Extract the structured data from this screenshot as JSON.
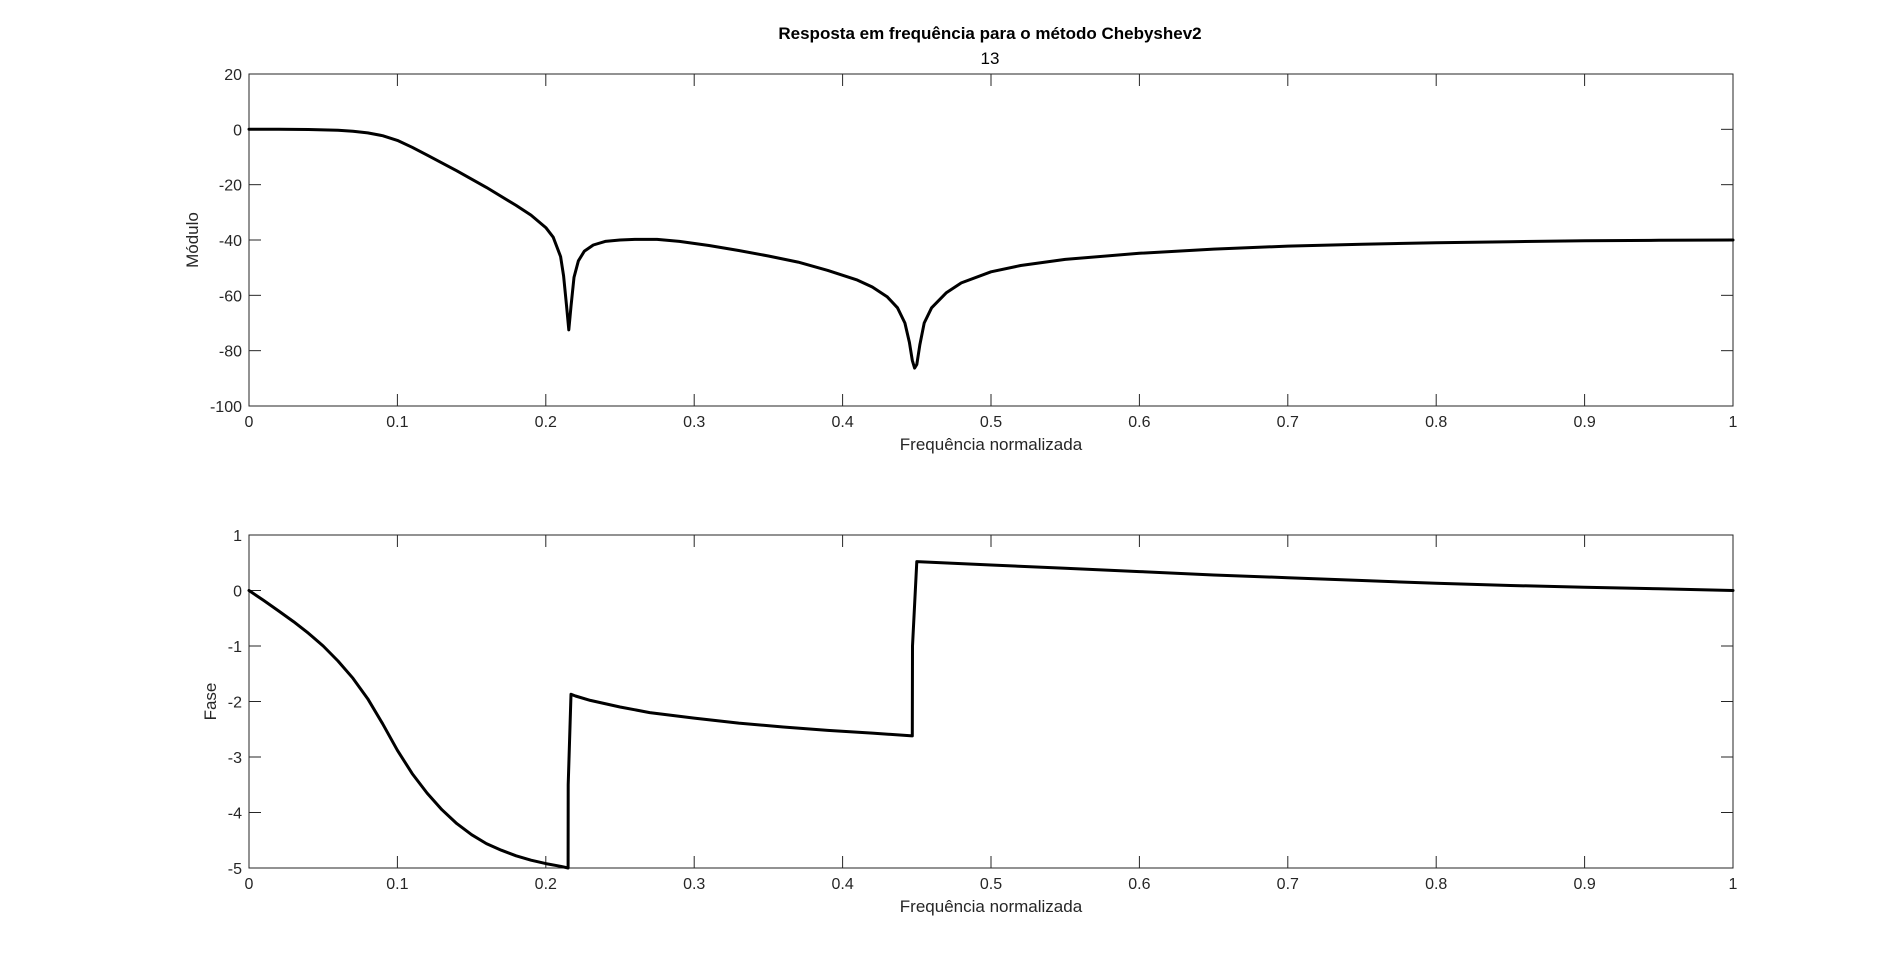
{
  "figure": {
    "title": "Resposta em frequência para o método Chebyshev2",
    "subtitle": "13",
    "line_color": "#000000",
    "axes_color": "#262626",
    "background": "#ffffff"
  },
  "chart_data": [
    {
      "type": "line",
      "xlabel": "Frequência normalizada",
      "ylabel": "Módulo",
      "xlim": [
        0,
        1
      ],
      "ylim": [
        -100,
        20
      ],
      "xticks": [
        0,
        0.1,
        0.2,
        0.3,
        0.4,
        0.5,
        0.6,
        0.7,
        0.8,
        0.9,
        1
      ],
      "xtick_labels": [
        "0",
        "0.1",
        "0.2",
        "0.3",
        "0.4",
        "0.5",
        "0.6",
        "0.7",
        "0.8",
        "0.9",
        "1"
      ],
      "yticks": [
        -100,
        -80,
        -60,
        -40,
        -20,
        0,
        20
      ],
      "ytick_labels": [
        "-100",
        "-80",
        "-60",
        "-40",
        "-20",
        "0",
        "20"
      ],
      "grid": false,
      "series": [
        {
          "x": [
            0,
            0.02,
            0.04,
            0.06,
            0.07,
            0.08,
            0.09,
            0.1,
            0.11,
            0.12,
            0.14,
            0.16,
            0.18,
            0.19,
            0.2,
            0.205,
            0.21,
            0.212,
            0.214,
            0.2155,
            0.217,
            0.219,
            0.222,
            0.226,
            0.232,
            0.24,
            0.25,
            0.26,
            0.275,
            0.29,
            0.31,
            0.33,
            0.35,
            0.37,
            0.39,
            0.41,
            0.42,
            0.43,
            0.437,
            0.442,
            0.445,
            0.447,
            0.4485,
            0.45,
            0.452,
            0.455,
            0.46,
            0.47,
            0.48,
            0.5,
            0.52,
            0.55,
            0.6,
            0.65,
            0.7,
            0.75,
            0.8,
            0.85,
            0.9,
            0.95,
            1
          ],
          "values": [
            0,
            0,
            -0.05,
            -0.3,
            -0.7,
            -1.3,
            -2.3,
            -4,
            -6.5,
            -9.3,
            -15,
            -21,
            -27.5,
            -31,
            -35.5,
            -39,
            -46,
            -53,
            -64,
            -72.5,
            -64,
            -53.5,
            -47.5,
            -44,
            -41.8,
            -40.5,
            -40,
            -39.8,
            -39.8,
            -40.5,
            -42,
            -43.8,
            -45.8,
            -48,
            -51,
            -54.5,
            -57,
            -60.5,
            -64.5,
            -70,
            -77,
            -83.5,
            -86.3,
            -85,
            -78,
            -70,
            -64.5,
            -59,
            -55.5,
            -51.5,
            -49.2,
            -47,
            -44.8,
            -43.3,
            -42.2,
            -41.5,
            -41,
            -40.6,
            -40.3,
            -40.1,
            -40
          ]
        }
      ]
    },
    {
      "type": "line",
      "xlabel": "Frequência normalizada",
      "ylabel": "Fase",
      "xlim": [
        0,
        1
      ],
      "ylim": [
        -5,
        1
      ],
      "xticks": [
        0,
        0.1,
        0.2,
        0.3,
        0.4,
        0.5,
        0.6,
        0.7,
        0.8,
        0.9,
        1
      ],
      "xtick_labels": [
        "0",
        "0.1",
        "0.2",
        "0.3",
        "0.4",
        "0.5",
        "0.6",
        "0.7",
        "0.8",
        "0.9",
        "1"
      ],
      "yticks": [
        -5,
        -4,
        -3,
        -2,
        -1,
        0,
        1
      ],
      "ytick_labels": [
        "-5",
        "-4",
        "-3",
        "-2",
        "-1",
        "0",
        "1"
      ],
      "grid": false,
      "series": [
        {
          "x": [
            0,
            0.01,
            0.02,
            0.03,
            0.04,
            0.05,
            0.06,
            0.07,
            0.08,
            0.09,
            0.1,
            0.11,
            0.12,
            0.13,
            0.14,
            0.15,
            0.16,
            0.17,
            0.18,
            0.19,
            0.2,
            0.21,
            0.215,
            0.2151,
            0.217,
            0.22,
            0.23,
            0.25,
            0.27,
            0.3,
            0.33,
            0.36,
            0.39,
            0.42,
            0.447,
            0.4471,
            0.45,
            0.5,
            0.55,
            0.6,
            0.65,
            0.7,
            0.75,
            0.8,
            0.85,
            0.9,
            0.95,
            1
          ],
          "values": [
            0,
            -0.18,
            -0.37,
            -0.56,
            -0.77,
            -1.0,
            -1.27,
            -1.58,
            -1.95,
            -2.4,
            -2.88,
            -3.3,
            -3.65,
            -3.95,
            -4.2,
            -4.4,
            -4.56,
            -4.68,
            -4.78,
            -4.86,
            -4.92,
            -4.97,
            -5.0,
            -3.5,
            -1.87,
            -1.9,
            -1.98,
            -2.1,
            -2.2,
            -2.3,
            -2.39,
            -2.46,
            -2.52,
            -2.57,
            -2.62,
            -1.0,
            0.52,
            0.46,
            0.4,
            0.34,
            0.28,
            0.23,
            0.18,
            0.13,
            0.09,
            0.06,
            0.03,
            0.0
          ]
        }
      ]
    }
  ]
}
